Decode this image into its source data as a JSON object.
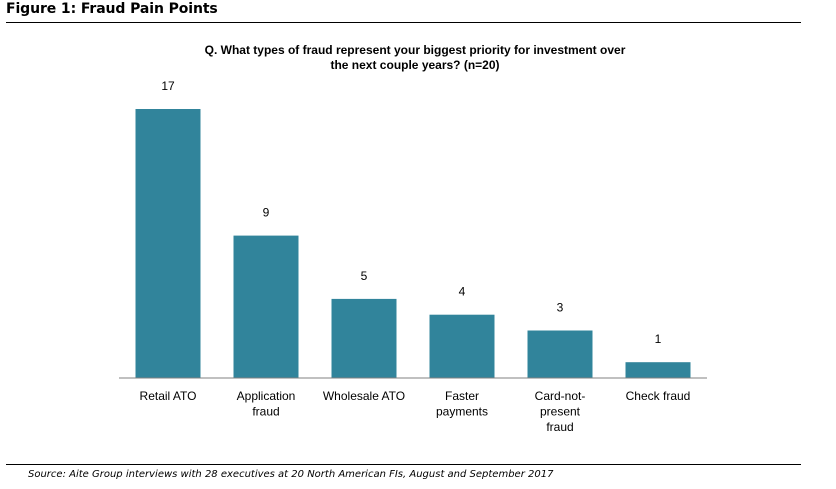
{
  "figure": {
    "title": "Figure 1: Fraud Pain Points",
    "source": "Source: Aite Group interviews with 28 executives at 20 North American FIs, August and September 2017"
  },
  "colors": {
    "bar": "#31849b",
    "axis": "#808080"
  },
  "chart_data": {
    "type": "bar",
    "title_lines": [
      "Q. What types of fraud represent your biggest priority for investment over",
      "the next couple years? (n=20)"
    ],
    "categories": [
      [
        "Retail ATO"
      ],
      [
        "Application",
        "fraud"
      ],
      [
        "Wholesale ATO"
      ],
      [
        "Faster",
        "payments"
      ],
      [
        "Card-not-",
        "present",
        "fraud"
      ],
      [
        "Check fraud"
      ]
    ],
    "values": [
      17,
      9,
      5,
      4,
      3,
      1
    ],
    "ylim": [
      0,
      17
    ],
    "grid": false,
    "legend": "none",
    "data_labels": true
  }
}
